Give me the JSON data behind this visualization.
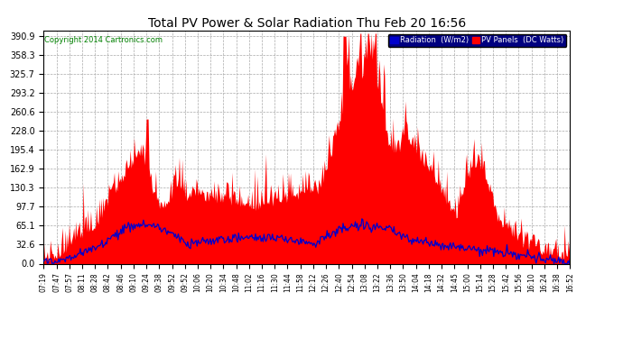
{
  "title": "Total PV Power & Solar Radiation Thu Feb 20 16:56",
  "copyright": "Copyright 2014 Cartronics.com",
  "legend_radiation": "Radiation  (W/m2)",
  "legend_pv": "PV Panels  (DC Watts)",
  "yticks": [
    0.0,
    32.6,
    65.1,
    97.7,
    130.3,
    162.9,
    195.4,
    228.0,
    260.6,
    293.2,
    325.7,
    358.3,
    390.9
  ],
  "ymax": 400,
  "bg_color": "#ffffff",
  "grid_color": "#aaaaaa",
  "pv_color": "#ff0000",
  "radiation_color": "#0000cc",
  "title_color": "#000000",
  "copyright_color": "#008000",
  "xtick_labels": [
    "07:19",
    "07:47",
    "07:57",
    "08:11",
    "08:28",
    "08:42",
    "08:46",
    "09:10",
    "09:24",
    "09:38",
    "09:52",
    "09:52",
    "10:06",
    "10:20",
    "10:34",
    "10:48",
    "11:02",
    "11:16",
    "11:30",
    "11:44",
    "11:58",
    "12:12",
    "12:26",
    "12:40",
    "12:54",
    "13:08",
    "13:22",
    "13:36",
    "13:50",
    "14:04",
    "14:18",
    "14:32",
    "14:45",
    "15:00",
    "15:14",
    "15:28",
    "15:42",
    "15:56",
    "16:10",
    "16:24",
    "16:38",
    "16:52"
  ]
}
